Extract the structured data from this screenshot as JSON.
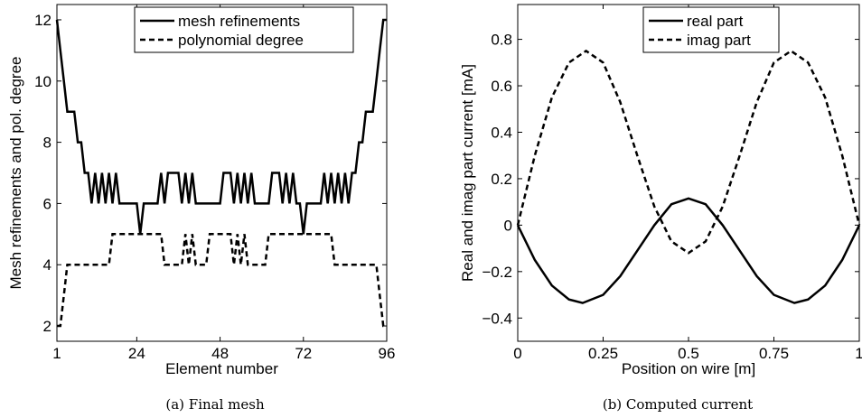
{
  "captions": {
    "a": "(a) Final mesh",
    "b": "(b) Computed current"
  },
  "chart_data": [
    {
      "type": "line",
      "xlabel": "Element number",
      "ylabel": "Mesh refinements and pol. degree",
      "xlim": [
        1,
        96
      ],
      "ylim": [
        1.5,
        12.5
      ],
      "xticks": [
        1,
        24,
        48,
        72,
        96
      ],
      "yticks": [
        2,
        4,
        6,
        8,
        10,
        12
      ],
      "legend_position": "top",
      "series": [
        {
          "name": "mesh refinements",
          "style": "solid",
          "color": "#000000",
          "x": [
            1,
            2,
            3,
            4,
            5,
            6,
            7,
            8,
            9,
            10,
            11,
            12,
            13,
            14,
            15,
            16,
            17,
            18,
            19,
            20,
            21,
            22,
            23,
            24,
            25,
            26,
            27,
            28,
            29,
            30,
            31,
            32,
            33,
            34,
            35,
            36,
            37,
            38,
            39,
            40,
            41,
            42,
            43,
            44,
            45,
            46,
            47,
            48,
            49,
            50,
            51,
            52,
            53,
            54,
            55,
            56,
            57,
            58,
            59,
            60,
            61,
            62,
            63,
            64,
            65,
            66,
            67,
            68,
            69,
            70,
            71,
            72,
            73,
            74,
            75,
            76,
            77,
            78,
            79,
            80,
            81,
            82,
            83,
            84,
            85,
            86,
            87,
            88,
            89,
            90,
            91,
            92,
            93,
            94,
            95,
            96
          ],
          "y": [
            12,
            11,
            10,
            9,
            9,
            9,
            8,
            8,
            7,
            7,
            6,
            7,
            6,
            7,
            6,
            7,
            6,
            7,
            6,
            6,
            6,
            6,
            6,
            6,
            5,
            6,
            6,
            6,
            6,
            6,
            7,
            6,
            7,
            7,
            7,
            7,
            6,
            7,
            6,
            7,
            6,
            6,
            6,
            6,
            6,
            6,
            6,
            6,
            7,
            7,
            7,
            6,
            7,
            6,
            7,
            6,
            7,
            6,
            6,
            6,
            6,
            6,
            7,
            7,
            7,
            6,
            7,
            6,
            7,
            6,
            6,
            5,
            6,
            6,
            6,
            6,
            6,
            7,
            6,
            7,
            6,
            7,
            6,
            7,
            6,
            7,
            7,
            8,
            8,
            9,
            9,
            9,
            10,
            11,
            12,
            12
          ]
        },
        {
          "name": "polynomial degree",
          "style": "dashed",
          "color": "#000000",
          "x": [
            1,
            2,
            3,
            4,
            5,
            6,
            7,
            8,
            9,
            10,
            11,
            12,
            13,
            14,
            15,
            16,
            17,
            18,
            19,
            20,
            21,
            22,
            23,
            24,
            25,
            26,
            27,
            28,
            29,
            30,
            31,
            32,
            33,
            34,
            35,
            36,
            37,
            38,
            39,
            40,
            41,
            42,
            43,
            44,
            45,
            46,
            47,
            48,
            49,
            50,
            51,
            52,
            53,
            54,
            55,
            56,
            57,
            58,
            59,
            60,
            61,
            62,
            63,
            64,
            65,
            66,
            67,
            68,
            69,
            70,
            71,
            72,
            73,
            74,
            75,
            76,
            77,
            78,
            79,
            80,
            81,
            82,
            83,
            84,
            85,
            86,
            87,
            88,
            89,
            90,
            91,
            92,
            93,
            94,
            95,
            96
          ],
          "y": [
            2,
            2,
            3,
            4,
            4,
            4,
            4,
            4,
            4,
            4,
            4,
            4,
            4,
            4,
            4,
            4,
            5,
            5,
            5,
            5,
            5,
            5,
            5,
            5,
            5,
            5,
            5,
            5,
            5,
            5,
            5,
            4,
            4,
            4,
            4,
            4,
            4,
            5,
            4,
            5,
            4,
            4,
            4,
            4,
            5,
            5,
            5,
            5,
            5,
            5,
            5,
            4,
            5,
            4,
            5,
            4,
            4,
            4,
            4,
            4,
            4,
            5,
            5,
            5,
            5,
            5,
            5,
            5,
            5,
            5,
            5,
            5,
            5,
            5,
            5,
            5,
            5,
            5,
            5,
            5,
            4,
            4,
            4,
            4,
            4,
            4,
            4,
            4,
            4,
            4,
            4,
            4,
            4,
            3,
            2,
            2
          ]
        }
      ]
    },
    {
      "type": "line",
      "xlabel": "Position on wire [m]",
      "ylabel": "Real and imag part current [mA]",
      "xlim": [
        0,
        1
      ],
      "ylim": [
        -0.5,
        0.95
      ],
      "xticks": [
        0,
        0.25,
        0.5,
        0.75,
        1
      ],
      "xtick_labels": [
        "0",
        "0.25",
        "0.5",
        "0.75",
        "1"
      ],
      "yticks": [
        -0.4,
        -0.2,
        0,
        0.2,
        0.4,
        0.6,
        0.8
      ],
      "ytick_labels": [
        "−0.4",
        "−0.2",
        "0",
        "0.2",
        "0.4",
        "0.6",
        "0.8"
      ],
      "legend_position": "top",
      "series": [
        {
          "name": "real part",
          "style": "solid",
          "color": "#000000",
          "x": [
            0,
            0.05,
            0.1,
            0.15,
            0.19,
            0.25,
            0.3,
            0.35,
            0.4,
            0.45,
            0.5,
            0.55,
            0.6,
            0.65,
            0.7,
            0.75,
            0.81,
            0.85,
            0.9,
            0.95,
            1
          ],
          "y": [
            0,
            -0.15,
            -0.26,
            -0.32,
            -0.335,
            -0.3,
            -0.22,
            -0.11,
            0,
            0.09,
            0.115,
            0.09,
            0,
            -0.11,
            -0.22,
            -0.3,
            -0.335,
            -0.32,
            -0.26,
            -0.15,
            0
          ]
        },
        {
          "name": "imag part",
          "style": "dashed",
          "color": "#000000",
          "x": [
            0,
            0.05,
            0.1,
            0.15,
            0.2,
            0.25,
            0.3,
            0.35,
            0.4,
            0.45,
            0.5,
            0.55,
            0.6,
            0.65,
            0.7,
            0.75,
            0.8,
            0.85,
            0.9,
            0.95,
            1
          ],
          "y": [
            0,
            0.3,
            0.55,
            0.7,
            0.75,
            0.7,
            0.53,
            0.3,
            0.08,
            -0.07,
            -0.12,
            -0.07,
            0.08,
            0.3,
            0.53,
            0.7,
            0.75,
            0.7,
            0.55,
            0.3,
            0
          ]
        }
      ]
    }
  ]
}
